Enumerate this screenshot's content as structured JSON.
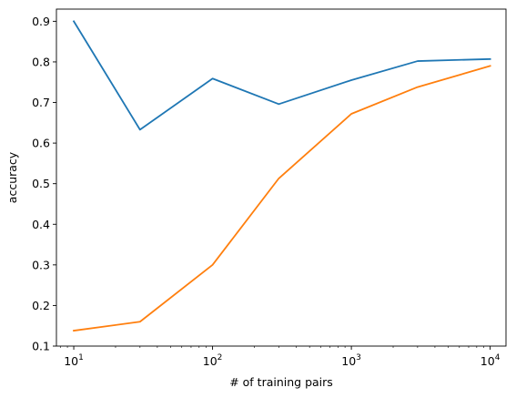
{
  "chart_data": {
    "type": "line",
    "title": "",
    "xlabel": "# of training pairs",
    "ylabel": "accuracy",
    "xscale": "log",
    "xlim": [
      7.5,
      13000
    ],
    "ylim": [
      0.1,
      0.93
    ],
    "grid": false,
    "x_ticks": [
      {
        "value": 10,
        "base": "10",
        "exp": "1"
      },
      {
        "value": 100,
        "base": "10",
        "exp": "2"
      },
      {
        "value": 1000,
        "base": "10",
        "exp": "3"
      },
      {
        "value": 10000,
        "base": "10",
        "exp": "4"
      }
    ],
    "y_ticks": [
      0.1,
      0.2,
      0.3,
      0.4,
      0.5,
      0.6,
      0.7,
      0.8,
      0.9
    ],
    "y_tick_labels": [
      "0.1",
      "0.2",
      "0.3",
      "0.4",
      "0.5",
      "0.6",
      "0.7",
      "0.8",
      "0.9"
    ],
    "x": [
      10,
      30,
      100,
      300,
      1000,
      3000,
      10000
    ],
    "series": [
      {
        "color": "#1f77b4",
        "values": [
          0.9,
          0.633,
          0.759,
          0.696,
          0.755,
          0.802,
          0.807
        ]
      },
      {
        "color": "#ff7f0e",
        "values": [
          0.138,
          0.16,
          0.3,
          0.513,
          0.672,
          0.738,
          0.79
        ]
      }
    ]
  }
}
